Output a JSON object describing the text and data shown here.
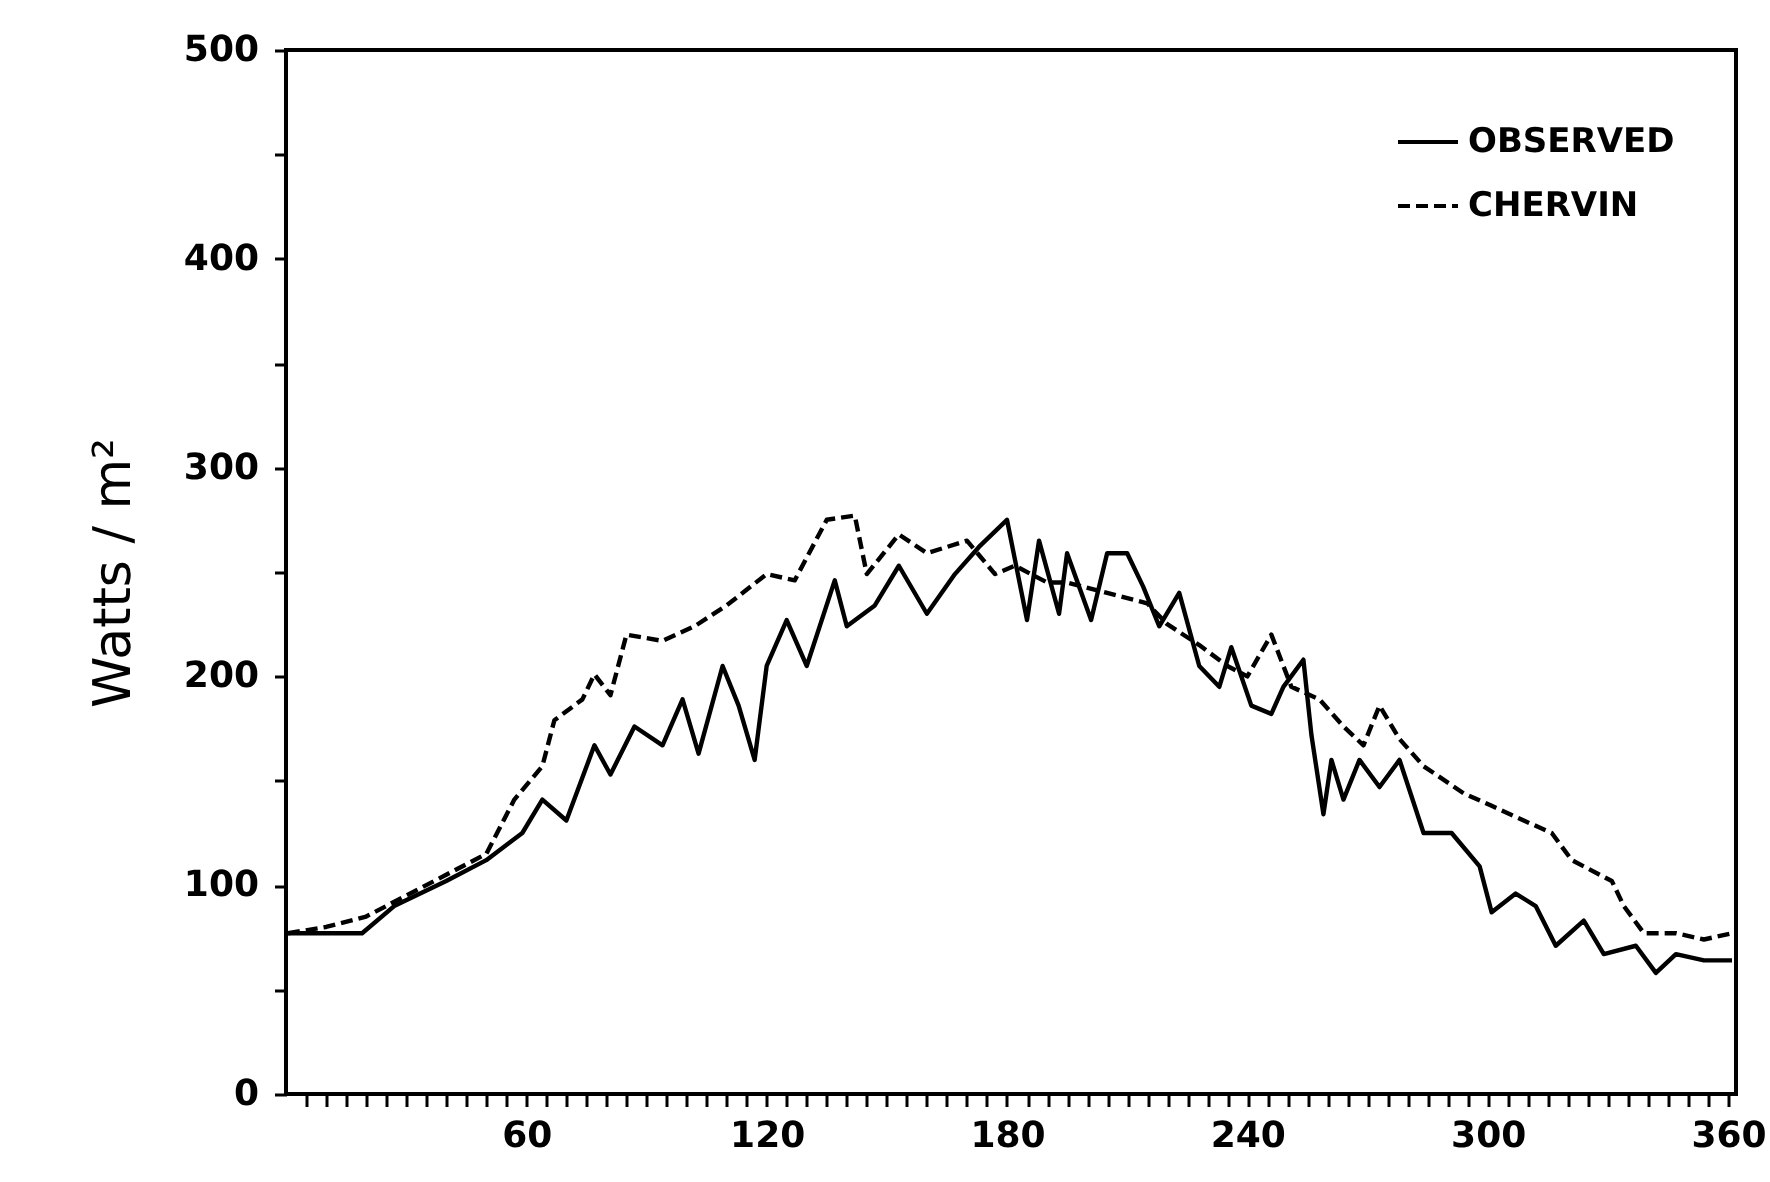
{
  "chart_data": {
    "type": "line",
    "ylabel": "Watts / m²",
    "xlim": [
      0,
      362
    ],
    "ylim": [
      0,
      500
    ],
    "xticks": [
      {
        "value": 5,
        "label": null
      },
      {
        "value": 10,
        "label": null
      },
      {
        "value": 15,
        "label": null
      },
      {
        "value": 20,
        "label": null
      },
      {
        "value": 25,
        "label": null
      },
      {
        "value": 30,
        "label": null
      },
      {
        "value": 35,
        "label": null
      },
      {
        "value": 40,
        "label": null
      },
      {
        "value": 45,
        "label": null
      },
      {
        "value": 50,
        "label": null
      },
      {
        "value": 55,
        "label": null
      },
      60,
      {
        "value": 65,
        "label": null
      },
      {
        "value": 70,
        "label": null
      },
      {
        "value": 75,
        "label": null
      },
      {
        "value": 80,
        "label": null
      },
      {
        "value": 85,
        "label": null
      },
      {
        "value": 90,
        "label": null
      },
      {
        "value": 95,
        "label": null
      },
      {
        "value": 100,
        "label": null
      },
      {
        "value": 105,
        "label": null
      },
      {
        "value": 110,
        "label": null
      },
      {
        "value": 115,
        "label": null
      },
      120,
      {
        "value": 125,
        "label": null
      },
      {
        "value": 130,
        "label": null
      },
      {
        "value": 135,
        "label": null
      },
      {
        "value": 140,
        "label": null
      },
      {
        "value": 145,
        "label": null
      },
      {
        "value": 150,
        "label": null
      },
      {
        "value": 155,
        "label": null
      },
      {
        "value": 160,
        "label": null
      },
      {
        "value": 165,
        "label": null
      },
      {
        "value": 170,
        "label": null
      },
      {
        "value": 175,
        "label": null
      },
      180,
      {
        "value": 185,
        "label": null
      },
      {
        "value": 190,
        "label": null
      },
      {
        "value": 195,
        "label": null
      },
      {
        "value": 200,
        "label": null
      },
      {
        "value": 205,
        "label": null
      },
      {
        "value": 210,
        "label": null
      },
      {
        "value": 215,
        "label": null
      },
      {
        "value": 220,
        "label": null
      },
      {
        "value": 225,
        "label": null
      },
      {
        "value": 230,
        "label": null
      },
      {
        "value": 235,
        "label": null
      },
      240,
      {
        "value": 245,
        "label": null
      },
      {
        "value": 250,
        "label": null
      },
      {
        "value": 255,
        "label": null
      },
      {
        "value": 260,
        "label": null
      },
      {
        "value": 265,
        "label": null
      },
      {
        "value": 270,
        "label": null
      },
      {
        "value": 275,
        "label": null
      },
      {
        "value": 280,
        "label": null
      },
      {
        "value": 285,
        "label": null
      },
      {
        "value": 290,
        "label": null
      },
      {
        "value": 295,
        "label": null
      },
      300,
      {
        "value": 305,
        "label": null
      },
      {
        "value": 310,
        "label": null
      },
      {
        "value": 315,
        "label": null
      },
      {
        "value": 320,
        "label": null
      },
      {
        "value": 325,
        "label": null
      },
      {
        "value": 330,
        "label": null
      },
      {
        "value": 335,
        "label": null
      },
      {
        "value": 340,
        "label": null
      },
      {
        "value": 345,
        "label": null
      },
      {
        "value": 350,
        "label": null
      },
      {
        "value": 355,
        "label": null
      },
      360
    ],
    "yticks": [
      0,
      {
        "value": 50,
        "label": null
      },
      100,
      {
        "value": 150,
        "label": null
      },
      200,
      {
        "value": 250,
        "label": null
      },
      300,
      {
        "value": 350,
        "label": null
      },
      400,
      {
        "value": 450,
        "label": null
      },
      500
    ],
    "legend": "top right",
    "grid": false,
    "series": [
      {
        "name": "OBSERVED",
        "color": "#000000",
        "line_style": "solid",
        "x": [
          0.5,
          10,
          19,
          27,
          40,
          50,
          59,
          64,
          70,
          77,
          81,
          87,
          94,
          99,
          103,
          109,
          113,
          117,
          120,
          125,
          130,
          137,
          140,
          147,
          153,
          160,
          167,
          173,
          180,
          185,
          188,
          193,
          195,
          201,
          205,
          210,
          214,
          218,
          223,
          228,
          233,
          236,
          241,
          246,
          249,
          254,
          256,
          259,
          261,
          264,
          268,
          273,
          278,
          284,
          291,
          298,
          301,
          307,
          312,
          317,
          324,
          329,
          337,
          342,
          347,
          354,
          361
        ],
        "values": [
          77,
          77,
          77,
          90,
          102,
          112,
          125,
          141,
          131,
          167,
          153,
          176,
          167,
          189,
          163,
          205,
          186,
          160,
          205,
          227,
          205,
          246,
          224,
          234,
          253,
          230,
          249,
          262,
          275,
          227,
          265,
          230,
          259,
          227,
          259,
          259,
          243,
          224,
          240,
          205,
          195,
          214,
          186,
          182,
          195,
          208,
          172,
          134,
          160,
          141,
          160,
          147,
          160,
          125,
          125,
          109,
          87,
          96,
          90,
          71,
          83,
          67,
          71,
          58,
          67,
          64,
          64
        ]
      },
      {
        "name": "CHERVIN",
        "color": "#000000",
        "line_style": "dashed",
        "x": [
          0.5,
          10,
          20,
          30,
          40,
          50,
          57,
          64,
          67,
          74,
          77,
          81,
          85,
          94,
          102,
          110,
          120,
          127,
          135,
          142,
          145,
          153,
          160,
          170,
          177,
          182,
          190,
          195,
          205,
          215,
          220,
          228,
          235,
          240,
          246,
          251,
          258,
          264,
          269,
          273,
          278,
          284,
          294,
          301,
          309,
          316,
          321,
          331,
          334,
          339,
          347,
          354,
          361
        ],
        "values": [
          77,
          80,
          85,
          95,
          105,
          115,
          141,
          157,
          179,
          189,
          201,
          191,
          220,
          217,
          224,
          234,
          249,
          246,
          275,
          277,
          249,
          268,
          259,
          265,
          249,
          253,
          245,
          245,
          240,
          235,
          225,
          215,
          205,
          200,
          220,
          195,
          189,
          176,
          167,
          186,
          170,
          157,
          144,
          138,
          131,
          125,
          112,
          102,
          90,
          77,
          77,
          74,
          77
        ]
      }
    ]
  }
}
